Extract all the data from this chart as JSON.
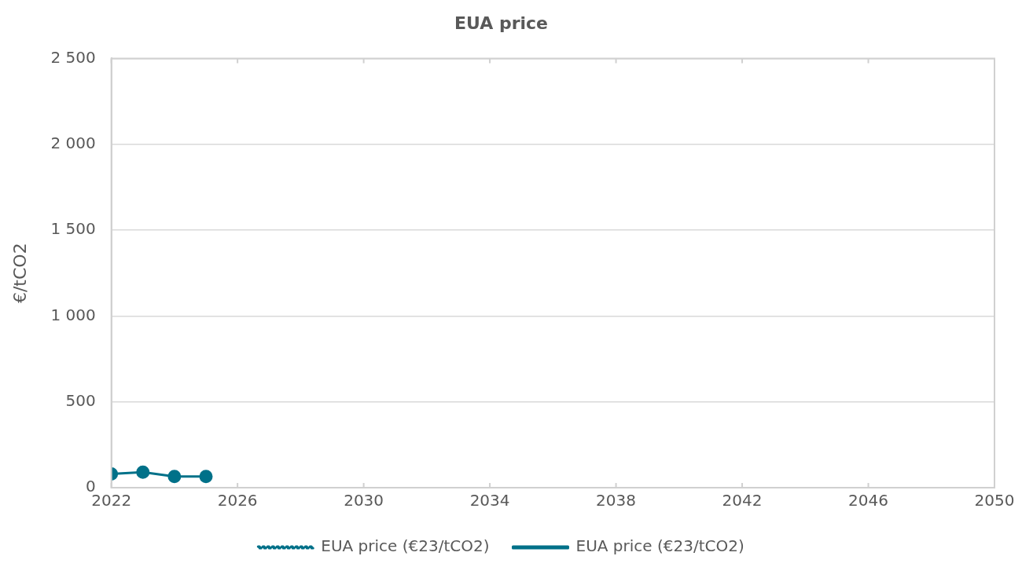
{
  "chart_data": {
    "type": "line",
    "title": "EUA price",
    "ylabel": "€/tCO2",
    "x": [
      2022,
      2023,
      2024,
      2025
    ],
    "series": [
      {
        "name": "EUA price (€23/tCO2)",
        "color": "#007189",
        "values": [
          null,
          null,
          null,
          null
        ],
        "line_style": "dotted",
        "marker": "none"
      },
      {
        "name": "EUA price (€23/tCO2)",
        "color": "#007189",
        "values": [
          80,
          90,
          65,
          65
        ],
        "line_style": "solid",
        "marker": "circle"
      }
    ],
    "xlim": [
      2022,
      2050
    ],
    "xticks": [
      2022,
      2026,
      2030,
      2034,
      2038,
      2042,
      2046,
      2050
    ],
    "ylim": [
      0,
      2500
    ],
    "yticks": [
      0,
      500,
      {
        "value": 1000,
        "label": "1 000"
      },
      {
        "value": 1500,
        "label": "1 500"
      },
      {
        "value": 2000,
        "label": "2 000"
      },
      {
        "value": 2500,
        "label": "2 500"
      }
    ],
    "grid": "y",
    "legend": "bottom"
  }
}
